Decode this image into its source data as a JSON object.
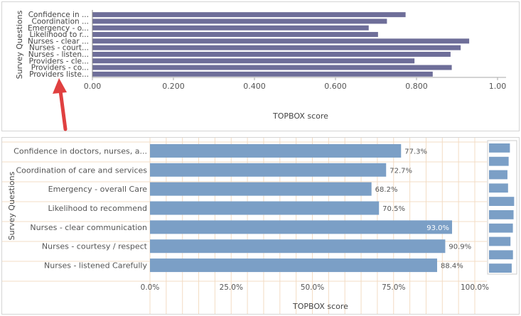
{
  "chart_data": [
    {
      "type": "bar",
      "orientation": "horizontal",
      "title": "",
      "xlabel": "TOPBOX score",
      "ylabel": "Survey Questions",
      "xlim": [
        0,
        1.0
      ],
      "ticks": [
        "0.00",
        "0.200",
        "0.400",
        "0.600",
        "0.800",
        "1.00"
      ],
      "tick_values": [
        0,
        0.2,
        0.4,
        0.6,
        0.8,
        1.0
      ],
      "categories": [
        "Confidence in ...",
        "Coordination ...",
        "Emergency - o...",
        "Likelihood to r...",
        "Nurses - clear ...",
        "Nurses - court...",
        "Nurses - listen...",
        "Providers - cle...",
        "Providers - co...",
        "Providers liste..."
      ],
      "values": [
        0.773,
        0.727,
        0.682,
        0.705,
        0.93,
        0.909,
        0.884,
        0.795,
        0.887,
        0.84
      ],
      "grid": false,
      "bar_color": "#6e6e99"
    },
    {
      "type": "bar",
      "orientation": "horizontal",
      "title": "",
      "xlabel": "TOPBOX score",
      "ylabel": "Survey Questions",
      "xlim": [
        0,
        100
      ],
      "ticks": [
        "0.0%",
        "25.0%",
        "50.0%",
        "75.0%",
        "100.0%"
      ],
      "tick_values": [
        0,
        25,
        50,
        75,
        100
      ],
      "categories": [
        "Confidence in doctors, nurses, a...",
        "Coordination of care and services",
        "Emergency - overall Care",
        "Likelihood to recommend",
        "Nurses - clear communication",
        "Nurses - courtesy / respect",
        "Nurses - listened Carefully"
      ],
      "values": [
        77.3,
        72.7,
        68.2,
        70.5,
        93.0,
        90.9,
        88.4
      ],
      "data_labels": [
        "77.3%",
        "72.7%",
        "68.2%",
        "70.5%",
        "93.0%",
        "90.9%",
        "88.4%"
      ],
      "grid": true,
      "bar_color": "#7b9fc6",
      "minimap_values": [
        77.3,
        72.7,
        68.2,
        70.5,
        93.0,
        90.9,
        88.4,
        79.5,
        88.7,
        84.0
      ]
    }
  ],
  "colors": {
    "arrow": "#e04040",
    "grid": "#f3dcc4"
  }
}
